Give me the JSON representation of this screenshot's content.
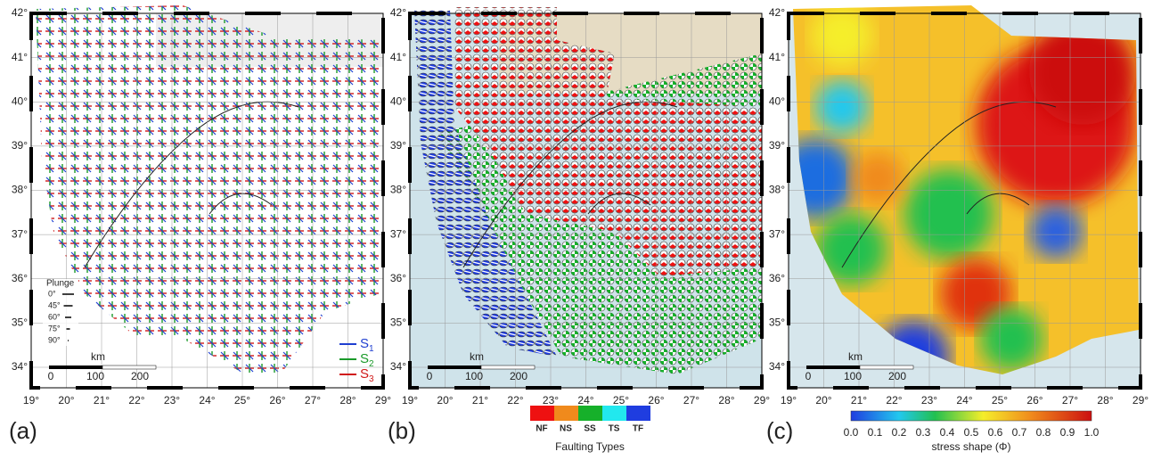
{
  "panels": [
    {
      "label": "(a)"
    },
    {
      "label": "(b)"
    },
    {
      "label": "(c)"
    }
  ],
  "latitude_labels": [
    "42°",
    "41°",
    "40°",
    "39°",
    "38°",
    "37°",
    "36°",
    "35°",
    "34°"
  ],
  "longitude_labels": [
    "19°",
    "20°",
    "21°",
    "22°",
    "23°",
    "24°",
    "25°",
    "26°",
    "27°",
    "28°",
    "29°"
  ],
  "scale_bar": {
    "unit": "km",
    "ticks": [
      "0",
      "100",
      "200"
    ]
  },
  "plunge_legend": {
    "title": "Plunge",
    "items": [
      "0°",
      "45°",
      "60°",
      "75°",
      "90°"
    ]
  },
  "stress_axes_legend": [
    {
      "symbol": "S",
      "subscript": "1",
      "color": "#1f3fd0"
    },
    {
      "symbol": "S",
      "subscript": "2",
      "color": "#1a9a2a"
    },
    {
      "symbol": "S",
      "subscript": "3",
      "color": "#d01818"
    }
  ],
  "faulting_types": {
    "title": "Faulting Types",
    "types": [
      {
        "label": "NF",
        "color": "#ee1111"
      },
      {
        "label": "NS",
        "color": "#f08a1c"
      },
      {
        "label": "SS",
        "color": "#16b02a"
      },
      {
        "label": "TS",
        "color": "#22e8ee"
      },
      {
        "label": "TF",
        "color": "#1f3de0"
      }
    ]
  },
  "colorbar": {
    "title": "stress shape (Φ)",
    "ticks": [
      "0.0",
      "0.1",
      "0.2",
      "0.3",
      "0.4",
      "0.5",
      "0.6",
      "0.7",
      "0.8",
      "0.9",
      "1.0"
    ]
  }
}
